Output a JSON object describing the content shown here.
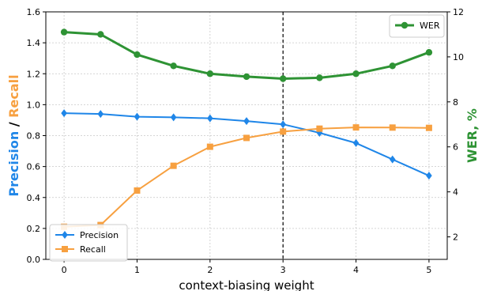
{
  "chart_data": {
    "type": "line",
    "xlabel": "context-biasing weight",
    "ylabel_left_parts": [
      "Precision",
      " / ",
      "Recall"
    ],
    "ylabel_right": "WER, %",
    "x": [
      0,
      0.5,
      1,
      1.5,
      2,
      2.5,
      3,
      3.5,
      4,
      4.5,
      5
    ],
    "xticks": [
      0,
      1,
      2,
      3,
      4,
      5
    ],
    "xlim": [
      -0.25,
      5.25
    ],
    "ylim_left": [
      0,
      1.6
    ],
    "yticks_left": [
      0.0,
      0.2,
      0.4,
      0.6,
      0.8,
      1.0,
      1.2,
      1.4,
      1.6
    ],
    "ylim_right": [
      1,
      12
    ],
    "yticks_right": [
      2,
      4,
      6,
      8,
      10,
      12
    ],
    "vline_x": 3,
    "grid": true,
    "series": [
      {
        "name": "Precision",
        "axis": "left",
        "color": "#1f86e8",
        "marker": "diamond",
        "values": [
          0.945,
          0.94,
          0.922,
          0.918,
          0.912,
          0.894,
          0.873,
          0.818,
          0.752,
          0.646,
          0.541
        ]
      },
      {
        "name": "Recall",
        "axis": "left",
        "color": "#f7a040",
        "marker": "square",
        "values": [
          0.211,
          0.222,
          0.445,
          0.605,
          0.728,
          0.785,
          0.826,
          0.845,
          0.853,
          0.852,
          0.85
        ]
      },
      {
        "name": "WER",
        "axis": "right",
        "color": "#2e9334",
        "marker": "circle",
        "values": [
          11.1,
          11.0,
          10.1,
          9.6,
          9.25,
          9.12,
          9.03,
          9.07,
          9.25,
          9.6,
          10.2
        ]
      }
    ],
    "legend_left_position": "bottom-left",
    "legend_right_position": "top-right"
  }
}
